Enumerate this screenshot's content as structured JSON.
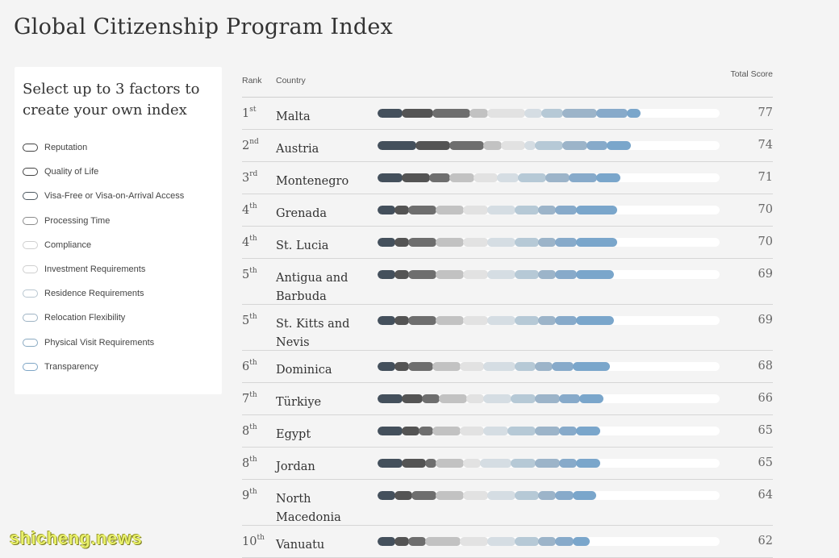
{
  "page": {
    "title": "Global Citizenship Program Index"
  },
  "factor_panel": {
    "heading": "Select up to 3 factors to create your own index",
    "factors": [
      {
        "label": "Reputation",
        "toggle_border": "#444444"
      },
      {
        "label": "Quality of Life",
        "toggle_border": "#444444"
      },
      {
        "label": "Visa-Free or Visa-on-Arrival Access",
        "toggle_border": "#4f5a63"
      },
      {
        "label": "Processing Time",
        "toggle_border": "#8c8c8c"
      },
      {
        "label": "Compliance",
        "toggle_border": "#cfcfcf"
      },
      {
        "label": "Investment Requirements",
        "toggle_border": "#cfcfcf"
      },
      {
        "label": "Residence Requirements",
        "toggle_border": "#b8c6d0"
      },
      {
        "label": "Relocation Flexibility",
        "toggle_border": "#9fb4c4"
      },
      {
        "label": "Physical Visit Requirements",
        "toggle_border": "#8aaac2"
      },
      {
        "label": "Transparency",
        "toggle_border": "#7fa6c6"
      }
    ]
  },
  "table": {
    "col_rank": "Rank",
    "col_country": "Country",
    "col_total": "Total Score"
  },
  "chart_data": {
    "type": "bar",
    "stacked": true,
    "orientation": "horizontal",
    "xlim": [
      0,
      100
    ],
    "segment_colors": [
      "#44505c",
      "#545454",
      "#6e6e6e",
      "#c2c2c2",
      "#e2e2e2",
      "#d5dde3",
      "#b6c9d6",
      "#9cb4c9",
      "#87aaca",
      "#7aa6cb"
    ],
    "rows": [
      {
        "rank_num": "1",
        "rank_suffix": "st",
        "country": "Malta",
        "total": 77,
        "segments": [
          7,
          9,
          11,
          5,
          11,
          5,
          6,
          10,
          9,
          4
        ]
      },
      {
        "rank_num": "2",
        "rank_suffix": "nd",
        "country": "Austria",
        "total": 74,
        "segments": [
          11,
          10,
          10,
          5,
          7,
          3,
          8,
          7,
          6,
          7
        ]
      },
      {
        "rank_num": "3",
        "rank_suffix": "rd",
        "country": "Montenegro",
        "total": 71,
        "segments": [
          7,
          8,
          6,
          7,
          7,
          6,
          8,
          7,
          8,
          7
        ]
      },
      {
        "rank_num": "4",
        "rank_suffix": "th",
        "country": "Grenada",
        "total": 70,
        "segments": [
          5,
          4,
          8,
          8,
          7,
          8,
          7,
          5,
          6,
          12
        ]
      },
      {
        "rank_num": "4",
        "rank_suffix": "th",
        "country": "St. Lucia",
        "total": 70,
        "segments": [
          5,
          4,
          8,
          8,
          7,
          8,
          7,
          5,
          6,
          12
        ]
      },
      {
        "rank_num": "5",
        "rank_suffix": "th",
        "country": "Antigua and Barbuda",
        "total": 69,
        "segments": [
          5,
          4,
          8,
          8,
          7,
          8,
          7,
          5,
          6,
          11
        ]
      },
      {
        "rank_num": "5",
        "rank_suffix": "th",
        "country": "St. Kitts and Nevis",
        "total": 69,
        "segments": [
          5,
          4,
          8,
          8,
          7,
          8,
          7,
          5,
          6,
          11
        ]
      },
      {
        "rank_num": "6",
        "rank_suffix": "th",
        "country": "Dominica",
        "total": 68,
        "segments": [
          5,
          4,
          7,
          8,
          7,
          9,
          6,
          5,
          6,
          11
        ]
      },
      {
        "rank_num": "7",
        "rank_suffix": "th",
        "country": "Türkiye",
        "total": 66,
        "segments": [
          7,
          6,
          5,
          8,
          5,
          8,
          7,
          7,
          6,
          7
        ]
      },
      {
        "rank_num": "8",
        "rank_suffix": "th",
        "country": "Egypt",
        "total": 65,
        "segments": [
          7,
          5,
          4,
          8,
          7,
          7,
          8,
          7,
          5,
          7
        ]
      },
      {
        "rank_num": "8",
        "rank_suffix": "th",
        "country": "Jordan",
        "total": 65,
        "segments": [
          7,
          7,
          3,
          8,
          5,
          9,
          7,
          7,
          5,
          7
        ]
      },
      {
        "rank_num": "9",
        "rank_suffix": "th",
        "country": "North Macedonia",
        "total": 64,
        "segments": [
          5,
          5,
          7,
          8,
          7,
          8,
          7,
          5,
          5,
          7
        ]
      },
      {
        "rank_num": "10",
        "rank_suffix": "th",
        "country": "Vanuatu",
        "total": 62,
        "segments": [
          5,
          4,
          5,
          10,
          8,
          8,
          7,
          5,
          5,
          5
        ]
      }
    ]
  },
  "watermark": "shicheng.news"
}
